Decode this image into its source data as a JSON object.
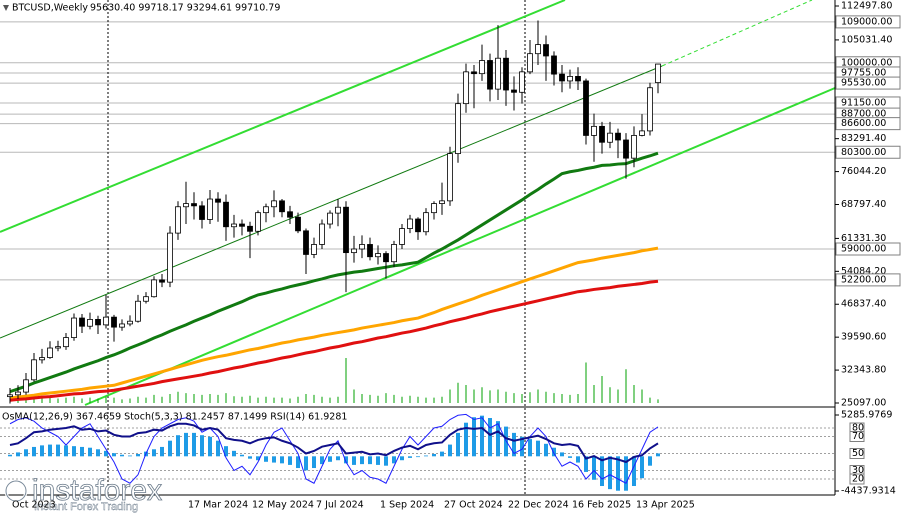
{
  "chart_data": [
    {
      "type": "candlestick",
      "title": "BTCUSD,Weekly",
      "subtitle": "95630.40 99718.17 93294.61 99710.79",
      "categories": [
        "Oct 2023",
        null,
        null,
        null,
        null,
        null,
        null,
        null,
        null,
        null,
        null,
        null,
        null,
        null,
        null,
        null,
        null,
        null,
        null,
        null,
        null,
        null,
        "17 Mar 2024",
        null,
        null,
        null,
        null,
        null,
        null,
        null,
        "12 May 2024",
        null,
        null,
        null,
        null,
        null,
        null,
        null,
        "7 Jul 2024",
        null,
        null,
        null,
        null,
        null,
        null,
        null,
        "1 Sep 2024",
        null,
        null,
        null,
        null,
        null,
        null,
        null,
        "27 Oct 2024",
        null,
        null,
        null,
        null,
        null,
        null,
        null,
        "22 Dec 2024",
        null,
        null,
        null,
        null,
        null,
        null,
        null,
        "16 Feb 2025",
        null,
        null,
        null,
        null,
        null,
        null,
        null,
        "13 Apr 2025",
        null,
        null,
        null
      ],
      "open": [
        26500,
        26900,
        27500,
        30200,
        34600,
        35100,
        37200,
        37500,
        39500,
        43800,
        42000,
        43500,
        42300,
        44000,
        41800,
        42500,
        43100,
        47500,
        48500,
        52200,
        51700,
        62500,
        68300,
        69000,
        68500,
        65500,
        70000,
        69300,
        63900,
        64500,
        64000,
        62900,
        67000,
        68300,
        69600,
        67200,
        66000,
        63000,
        57800,
        60000,
        64500,
        66900,
        68200,
        58200,
        59000,
        60000,
        57300,
        58000,
        56200,
        60000,
        63500,
        65600,
        62800,
        67000,
        69000,
        69600,
        80000,
        91000,
        98000,
        97600,
        100500,
        94200,
        101000,
        94000,
        93500,
        98000,
        102000,
        104000,
        101500,
        97500,
        96000,
        97000,
        96000,
        84000,
        86000,
        82500,
        84500,
        83000,
        79000,
        84000,
        85000,
        95630.4
      ],
      "high": [
        28400,
        29000,
        31700,
        36100,
        37000,
        38700,
        38800,
        40500,
        44800,
        44700,
        45000,
        44300,
        48900,
        44500,
        43500,
        44400,
        48900,
        49500,
        53000,
        53500,
        64000,
        69500,
        73800,
        71500,
        69500,
        72000,
        71500,
        71000,
        66500,
        65500,
        65000,
        67500,
        69000,
        71900,
        70000,
        68500,
        67000,
        63500,
        61500,
        65500,
        67500,
        70000,
        69500,
        61900,
        62000,
        61500,
        59800,
        58500,
        60800,
        64500,
        66500,
        66000,
        68000,
        69500,
        73600,
        81500,
        93200,
        99800,
        99500,
        104000,
        102000,
        108300,
        102800,
        97000,
        99000,
        105000,
        109300,
        106000,
        102500,
        99500,
        98500,
        99000,
        96500,
        88800,
        87000,
        87000,
        85500,
        84500,
        86000,
        88700,
        95600,
        99718.17
      ],
      "low": [
        25000,
        26000,
        26900,
        29800,
        33800,
        34800,
        36500,
        36800,
        38800,
        40500,
        41300,
        40300,
        41500,
        38600,
        41000,
        42000,
        42800,
        47000,
        48300,
        50600,
        50600,
        61000,
        64500,
        65500,
        63500,
        64500,
        65000,
        60800,
        61500,
        62000,
        57000,
        62000,
        64900,
        66000,
        66000,
        64500,
        62500,
        53500,
        57000,
        59000,
        63500,
        64000,
        49500,
        56000,
        57000,
        56500,
        55600,
        52500,
        55000,
        59000,
        62500,
        61000,
        62000,
        65500,
        66500,
        68500,
        78000,
        89000,
        90000,
        96000,
        91500,
        91800,
        90500,
        89500,
        91000,
        97500,
        99500,
        96000,
        95000,
        93500,
        94300,
        94000,
        82000,
        78200,
        80000,
        81200,
        79000,
        74500,
        77000,
        83800,
        84000,
        93294.61
      ],
      "close": [
        26900,
        27500,
        30200,
        34600,
        35100,
        37200,
        37500,
        39500,
        43800,
        42000,
        43500,
        42300,
        44000,
        41800,
        42500,
        43100,
        47500,
        48500,
        52200,
        51700,
        62500,
        68300,
        69000,
        68500,
        65500,
        70000,
        69300,
        63900,
        64500,
        64000,
        62900,
        67000,
        68300,
        69600,
        67200,
        66000,
        63000,
        57800,
        60000,
        64500,
        66900,
        68200,
        58200,
        59000,
        60000,
        57300,
        58000,
        56200,
        60000,
        63500,
        65600,
        62800,
        67000,
        69000,
        69600,
        80000,
        91000,
        98000,
        97600,
        100500,
        94200,
        101000,
        94000,
        93500,
        98000,
        102000,
        104000,
        101500,
        97500,
        96000,
        97000,
        96000,
        84000,
        86000,
        82500,
        84500,
        83000,
        79000,
        84000,
        85000,
        94500,
        99710.79
      ],
      "moving_averages": [
        {
          "color": "#117a11",
          "values": [
            27600,
            28200,
            28800,
            29500,
            30100,
            30700,
            31300,
            31900,
            32600,
            33200,
            33800,
            34400,
            35100,
            35700,
            36400,
            37200,
            37900,
            38600,
            39400,
            40100,
            40900,
            41600,
            42300,
            43100,
            43800,
            44500,
            45300,
            46000,
            46700,
            47400,
            48200,
            48900,
            49300,
            49800,
            50200,
            50700,
            51100,
            51500,
            52000,
            52400,
            52900,
            53300,
            53600,
            53900,
            54100,
            54400,
            54700,
            55000,
            55300,
            55500,
            55800,
            56100,
            57100,
            58100,
            59000,
            60000,
            61000,
            62100,
            63200,
            64300,
            65400,
            66500,
            67600,
            68700,
            69800,
            71000,
            72100,
            73300,
            74400,
            75600,
            76000,
            76300,
            76700,
            77000,
            77400,
            77500,
            77700,
            77800,
            78400,
            79000,
            79500,
            80100
          ]
        },
        {
          "color": "#ffa500",
          "values": [
            26200,
            26400,
            26600,
            26800,
            27100,
            27300,
            27500,
            27700,
            27900,
            28100,
            28400,
            28600,
            28800,
            29000,
            29500,
            30000,
            30500,
            31000,
            31500,
            32000,
            32500,
            33000,
            33500,
            34000,
            34500,
            34900,
            35300,
            35600,
            36000,
            36400,
            36800,
            37100,
            37500,
            37900,
            38300,
            38600,
            39000,
            39300,
            39600,
            40000,
            40300,
            40600,
            40900,
            41200,
            41600,
            41900,
            42200,
            42500,
            42800,
            43200,
            43500,
            43800,
            44400,
            45000,
            45700,
            46300,
            46900,
            47500,
            48100,
            48800,
            49400,
            50000,
            50600,
            51200,
            51800,
            52400,
            53000,
            53600,
            54200,
            54800,
            55400,
            56000,
            56300,
            56600,
            57000,
            57300,
            57600,
            57900,
            58200,
            58600,
            58900,
            59200
          ]
        },
        {
          "color": "#e01010",
          "values": [
            25700,
            25900,
            26000,
            26200,
            26400,
            26500,
            26700,
            26900,
            27100,
            27200,
            27400,
            27600,
            27700,
            27900,
            28200,
            28500,
            28800,
            29100,
            29400,
            29800,
            30100,
            30400,
            30700,
            31000,
            31300,
            31700,
            32000,
            32400,
            32800,
            33100,
            33500,
            33900,
            34200,
            34600,
            35000,
            35300,
            35700,
            36100,
            36400,
            36800,
            37200,
            37500,
            37900,
            38300,
            38600,
            39000,
            39400,
            39700,
            40100,
            40500,
            40800,
            41200,
            41600,
            42100,
            42500,
            43000,
            43400,
            43800,
            44300,
            44700,
            45200,
            45600,
            46000,
            46400,
            46800,
            47200,
            47600,
            48000,
            48400,
            48800,
            49200,
            49600,
            49800,
            50100,
            50300,
            50500,
            50800,
            51000,
            51200,
            51400,
            51700,
            51900
          ]
        }
      ],
      "volume": {
        "color": "#00a000",
        "values": [
          10,
          12,
          15,
          18,
          14,
          12,
          10,
          12,
          14,
          10,
          12,
          10,
          14,
          12,
          8,
          10,
          14,
          12,
          18,
          14,
          20,
          25,
          22,
          20,
          18,
          20,
          18,
          22,
          15,
          14,
          16,
          12,
          14,
          12,
          12,
          10,
          14,
          20,
          18,
          14,
          12,
          14,
          100,
          30,
          20,
          18,
          16,
          22,
          18,
          14,
          16,
          14,
          12,
          12,
          14,
          30,
          45,
          40,
          30,
          35,
          28,
          30,
          25,
          22,
          20,
          24,
          30,
          25,
          22,
          20,
          18,
          20,
          90,
          40,
          60,
          35,
          30,
          75,
          40,
          30,
          12,
          8
        ]
      },
      "ylim": [
        24657,
        113818
      ],
      "yticks": [
        {
          "value": 112497.8,
          "label": "112497.80"
        },
        {
          "value": 105031.4,
          "label": "105031.40"
        },
        {
          "value": 83291.4,
          "label": "83291.40"
        },
        {
          "value": 76044.2,
          "label": "76044.20"
        },
        {
          "value": 68797.4,
          "label": "68797.40"
        },
        {
          "value": 61331.3,
          "label": "61331.30"
        },
        {
          "value": 54084.2,
          "label": "54084.20"
        },
        {
          "value": 46837.4,
          "label": "46837.40"
        },
        {
          "value": 39590.6,
          "label": "39590.60"
        },
        {
          "value": 32343.8,
          "label": "32343.80"
        },
        {
          "value": 25097,
          "label": "25097.00"
        }
      ],
      "levels": [
        {
          "value": 109000,
          "label": "109000.00"
        },
        {
          "value": 100000,
          "label": "100000.00"
        },
        {
          "value": 97755,
          "label": "97755.00"
        },
        {
          "value": 95530,
          "label": "95530.00"
        },
        {
          "value": 91150,
          "label": "91150.00"
        },
        {
          "value": 88700,
          "label": "88700.00"
        },
        {
          "value": 86600,
          "label": "86600.00"
        },
        {
          "value": 80300,
          "label": "80300.00"
        },
        {
          "value": 59000,
          "label": "59000.00"
        },
        {
          "value": 52200,
          "label": "52200.00"
        }
      ]
    },
    {
      "type": "oscillator",
      "title": "OsMA(12,26,9) 367.4659 Stoch(5,3,3) 81.2457 87.1499 RSI(14) 61.9281",
      "histogram": {
        "color": "#1e9be6",
        "values": [
          200,
          500,
          900,
          1200,
          1400,
          1500,
          1500,
          1400,
          1300,
          1200,
          1100,
          900,
          700,
          400,
          200,
          100,
          300,
          600,
          900,
          1200,
          2000,
          2700,
          3000,
          3000,
          2700,
          2500,
          2000,
          1300,
          700,
          200,
          -300,
          -500,
          -700,
          -800,
          -900,
          -1100,
          -1500,
          -1800,
          -1500,
          -1000,
          -700,
          -500,
          -900,
          -1100,
          -1000,
          -1000,
          -1100,
          -1200,
          -900,
          -500,
          -200,
          -100,
          100,
          300,
          600,
          1500,
          3000,
          4300,
          5000,
          5200,
          4900,
          4500,
          3800,
          3000,
          2500,
          2200,
          2000,
          1600,
          1100,
          500,
          -200,
          -800,
          -2000,
          -3000,
          -3800,
          -4200,
          -4400,
          -4400,
          -3800,
          -2800,
          -1200,
          367.4659
        ]
      },
      "series": [
        {
          "color": "#2020ff",
          "axis": "y2",
          "values": [
            85,
            90,
            92,
            88,
            80,
            75,
            70,
            60,
            70,
            80,
            85,
            70,
            55,
            40,
            20,
            15,
            25,
            50,
            70,
            80,
            85,
            90,
            92,
            88,
            75,
            80,
            70,
            45,
            30,
            35,
            25,
            40,
            60,
            75,
            80,
            65,
            50,
            20,
            15,
            35,
            55,
            65,
            40,
            25,
            30,
            22,
            20,
            15,
            35,
            55,
            70,
            60,
            70,
            80,
            82,
            90,
            95,
            96,
            90,
            92,
            80,
            85,
            65,
            50,
            55,
            70,
            80,
            70,
            50,
            35,
            40,
            35,
            20,
            30,
            20,
            25,
            20,
            15,
            35,
            55,
            75,
            81.2457
          ]
        },
        {
          "color": "#10108a",
          "axis": "y2",
          "values": [
            60,
            62,
            68,
            75,
            76,
            78,
            79,
            80,
            82,
            78,
            79,
            76,
            77,
            72,
            70,
            70,
            74,
            75,
            78,
            77,
            82,
            85,
            85,
            83,
            78,
            80,
            78,
            68,
            66,
            65,
            62,
            66,
            68,
            69,
            65,
            62,
            57,
            50,
            53,
            58,
            60,
            62,
            50,
            51,
            52,
            49,
            50,
            48,
            53,
            57,
            59,
            55,
            60,
            62,
            63,
            72,
            78,
            80,
            79,
            80,
            72,
            76,
            68,
            65,
            67,
            69,
            71,
            67,
            62,
            60,
            61,
            59,
            44,
            47,
            42,
            45,
            43,
            40,
            46,
            48,
            56,
            61.9281
          ]
        }
      ],
      "ylim": [
        -4437.9314,
        5285.9769
      ],
      "yticks": [
        5285.9769,
        -4437.9314
      ],
      "y2lim": [
        0,
        100
      ],
      "y2ticks": [
        80,
        70,
        50,
        30,
        20
      ]
    }
  ],
  "logo": {
    "name": "instaforex",
    "tagline": "Instant Forex Trading"
  }
}
